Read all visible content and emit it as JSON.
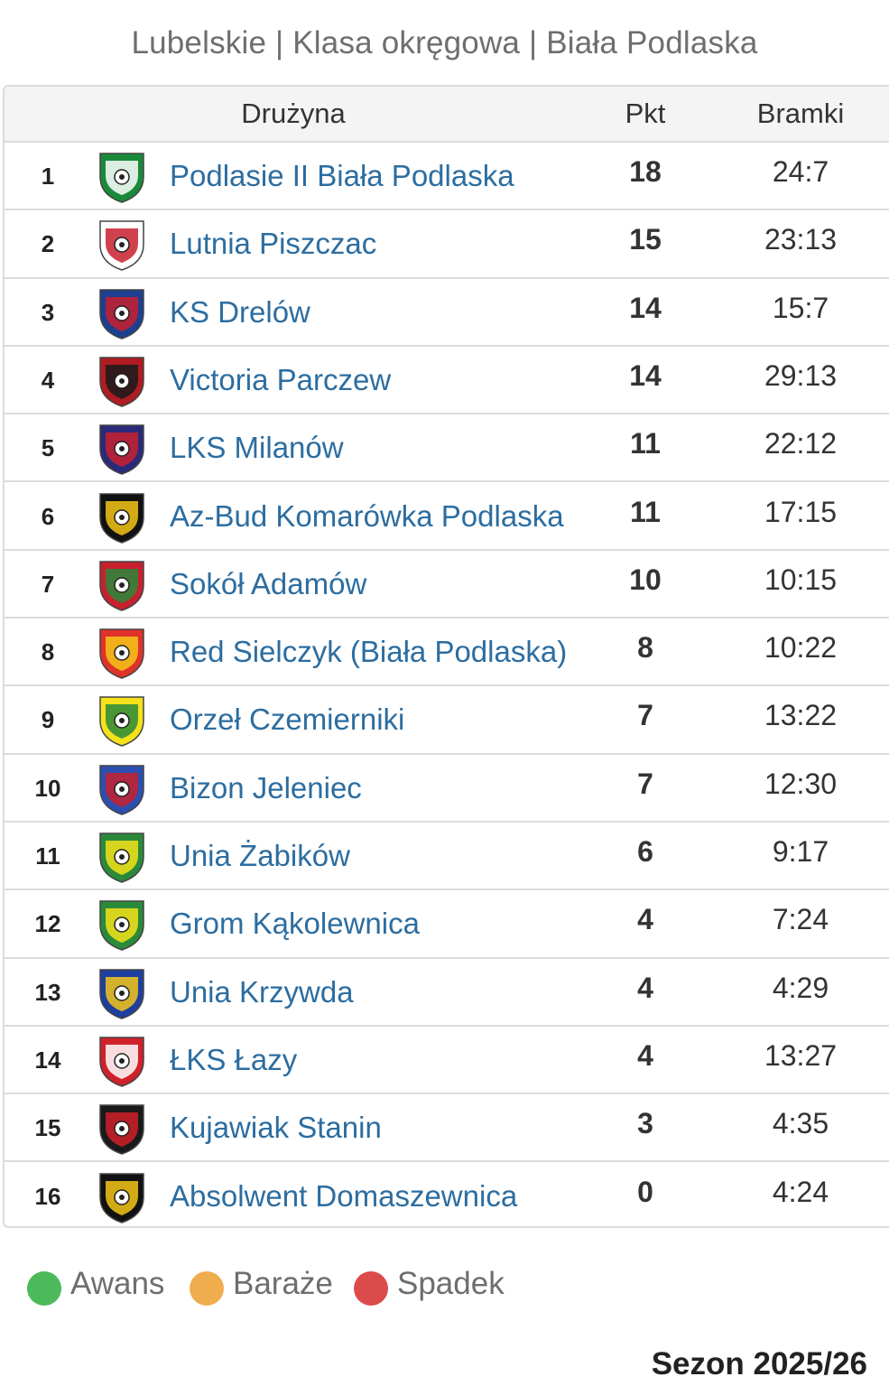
{
  "title": "Lubelskie | Klasa okręgowa | Biała Podlaska",
  "header": {
    "team": "Drużyna",
    "points": "Pkt",
    "goals": "Bramki"
  },
  "rows": [
    {
      "pos": "1",
      "team": "Podlasie II Biała Podlaska",
      "pts": "18",
      "goals": "24:7",
      "crest_colors": [
        "#1a8a3a",
        "#ffffff"
      ],
      "crest_icon": "podlasie-crest-icon"
    },
    {
      "pos": "2",
      "team": "Lutnia Piszczac",
      "pts": "15",
      "goals": "23:13",
      "crest_colors": [
        "#ffffff",
        "#c8202f"
      ],
      "crest_icon": "lutnia-crest-icon"
    },
    {
      "pos": "3",
      "team": "KS Drelów",
      "pts": "14",
      "goals": "15:7",
      "crest_colors": [
        "#1d3f8f",
        "#c8202f"
      ],
      "crest_icon": "drelow-crest-icon"
    },
    {
      "pos": "4",
      "team": "Victoria Parczew",
      "pts": "14",
      "goals": "29:13",
      "crest_colors": [
        "#b01c22",
        "#1a1a1a"
      ],
      "crest_icon": "victoria-crest-icon"
    },
    {
      "pos": "5",
      "team": "LKS Milanów",
      "pts": "11",
      "goals": "22:12",
      "crest_colors": [
        "#2a2a7a",
        "#c8202f"
      ],
      "crest_icon": "milanow-crest-icon"
    },
    {
      "pos": "6",
      "team": "Az-Bud Komarówka Podlaska",
      "pts": "11",
      "goals": "17:15",
      "crest_colors": [
        "#111111",
        "#f5c518"
      ],
      "crest_icon": "azbud-crest-icon"
    },
    {
      "pos": "7",
      "team": "Sokół Adamów",
      "pts": "10",
      "goals": "10:15",
      "crest_colors": [
        "#c8202f",
        "#2a8a3a"
      ],
      "crest_icon": "sokol-crest-icon"
    },
    {
      "pos": "8",
      "team": "Red Sielczyk (Biała Podlaska)",
      "pts": "8",
      "goals": "10:22",
      "crest_colors": [
        "#e0322a",
        "#f5c518"
      ],
      "crest_icon": "red-sielczyk-crest-icon"
    },
    {
      "pos": "9",
      "team": "Orzeł Czemierniki",
      "pts": "7",
      "goals": "13:22",
      "crest_colors": [
        "#f5e21a",
        "#2a8a3a"
      ],
      "crest_icon": "orzel-crest-icon"
    },
    {
      "pos": "10",
      "team": "Bizon Jeleniec",
      "pts": "7",
      "goals": "12:30",
      "crest_colors": [
        "#2a4fb0",
        "#c8202f"
      ],
      "crest_icon": "bizon-crest-icon"
    },
    {
      "pos": "11",
      "team": "Unia Żabików",
      "pts": "6",
      "goals": "9:17",
      "crest_colors": [
        "#2a8a3a",
        "#f5e21a"
      ],
      "crest_icon": "unia-zabikow-crest-icon"
    },
    {
      "pos": "12",
      "team": "Grom Kąkolewnica",
      "pts": "4",
      "goals": "7:24",
      "crest_colors": [
        "#2a8a3a",
        "#f5e21a"
      ],
      "crest_icon": "grom-crest-icon"
    },
    {
      "pos": "13",
      "team": "Unia Krzywda",
      "pts": "4",
      "goals": "4:29",
      "crest_colors": [
        "#1d3f9f",
        "#f5c518"
      ],
      "crest_icon": "unia-krzywda-crest-icon"
    },
    {
      "pos": "14",
      "team": "ŁKS Łazy",
      "pts": "4",
      "goals": "13:27",
      "crest_colors": [
        "#d0202a",
        "#ffffff"
      ],
      "crest_icon": "lazy-crest-icon"
    },
    {
      "pos": "15",
      "team": "Kujawiak Stanin",
      "pts": "3",
      "goals": "4:35",
      "crest_colors": [
        "#1a1a1a",
        "#d0202a"
      ],
      "crest_icon": "kujawiak-crest-icon"
    },
    {
      "pos": "16",
      "team": "Absolwent Domaszewnica",
      "pts": "0",
      "goals": "4:24",
      "crest_colors": [
        "#111111",
        "#f5c518"
      ],
      "crest_icon": "absolwent-crest-icon"
    }
  ],
  "legend": [
    {
      "label": "Awans",
      "color": "#4cba5a"
    },
    {
      "label": "Baraże",
      "color": "#f0ad4e"
    },
    {
      "label": "Spadek",
      "color": "#dc4b4b"
    }
  ],
  "season": "Sezon 2025/26"
}
